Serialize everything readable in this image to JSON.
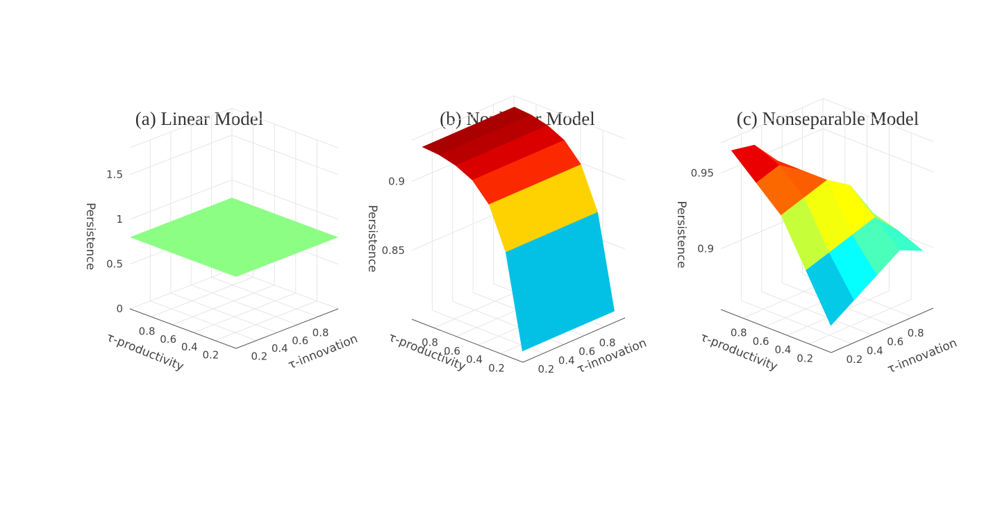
{
  "chart_data": [
    {
      "type": "surface",
      "title": "(a) Linear Model",
      "xlabel": "τ-innovation",
      "ylabel": "τ-productivity",
      "zlabel": "Persistence",
      "x_ticks": [
        "0.2",
        "0.4",
        "0.6",
        "0.8"
      ],
      "y_ticks": [
        "0.2",
        "0.4",
        "0.6",
        "0.8"
      ],
      "z_ticks": [
        "0",
        "0.5",
        "1",
        "1.5"
      ],
      "zlim": [
        0,
        1.8
      ],
      "surface": {
        "form": "constant",
        "value": 0.8,
        "color": "#8cfe84"
      }
    },
    {
      "type": "surface",
      "title": "(b) Nonlinear Model",
      "xlabel": "τ-innovation",
      "ylabel": "τ-productivity",
      "zlabel": "Persistence",
      "x_ticks": [
        "0.2",
        "0.4",
        "0.6",
        "0.8"
      ],
      "y_ticks": [
        "0.2",
        "0.4",
        "0.6",
        "0.8"
      ],
      "z_ticks": [
        "0.85",
        "0.9"
      ],
      "zlim": [
        0.8,
        0.93
      ],
      "surface": {
        "form": "function of τ-productivity",
        "grid": [
          0.05,
          0.2,
          0.35,
          0.5,
          0.65,
          0.8,
          0.95
        ],
        "values": [
          0.805,
          0.872,
          0.902,
          0.915,
          0.921,
          0.924,
          0.925
        ],
        "colorscale": "jet"
      }
    },
    {
      "type": "surface",
      "title": "(c) Nonseparable Model",
      "xlabel": "τ-innovation",
      "ylabel": "τ-productivity",
      "zlabel": "Persistence",
      "x_ticks": [
        "0.2",
        "0.4",
        "0.6",
        "0.8"
      ],
      "y_ticks": [
        "0.2",
        "0.4",
        "0.6",
        "0.8"
      ],
      "z_ticks": [
        "0.9",
        "0.95"
      ],
      "zlim": [
        0.86,
        0.97
      ],
      "surface": {
        "form": "grid",
        "grid": [
          0.05,
          0.275,
          0.5,
          0.725,
          0.95
        ],
        "values": [
          [
            0.875,
            0.905,
            0.935,
            0.95,
            0.965
          ],
          [
            0.885,
            0.91,
            0.94,
            0.955,
            0.962
          ],
          [
            0.895,
            0.915,
            0.945,
            0.945,
            0.945
          ],
          [
            0.905,
            0.92,
            0.935,
            0.925,
            0.925
          ],
          [
            0.898,
            0.905,
            0.91,
            0.88,
            0.865
          ]
        ],
        "colorscale": "jet"
      }
    }
  ]
}
